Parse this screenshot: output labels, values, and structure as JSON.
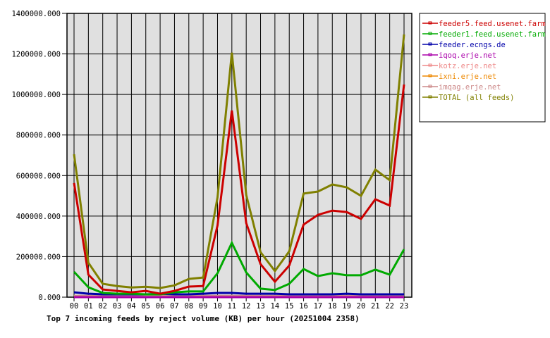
{
  "chart_data": {
    "type": "line",
    "title": "Top 7 incoming feeds by reject volume (KB) per hour (20251004 2358)",
    "xlabel": "",
    "ylabel": "",
    "ylim": [
      0,
      1400000
    ],
    "y_ticks": [
      "0.000",
      "200000.000",
      "400000.000",
      "600000.000",
      "800000.000",
      "1000000.000",
      "1200000.000",
      "1400000.000"
    ],
    "categories": [
      "00",
      "01",
      "02",
      "03",
      "04",
      "05",
      "06",
      "07",
      "08",
      "09",
      "10",
      "11",
      "12",
      "13",
      "14",
      "15",
      "16",
      "17",
      "18",
      "19",
      "20",
      "21",
      "22",
      "23"
    ],
    "grid": true,
    "legend_position": "right-top",
    "series": [
      {
        "name": "feeder5.feed.usenet.farm",
        "color": "#cc0000",
        "values": [
          563000,
          111000,
          38000,
          31000,
          24000,
          31000,
          17000,
          31000,
          52000,
          55000,
          354000,
          921000,
          365000,
          163000,
          76000,
          156000,
          358000,
          406000,
          427000,
          420000,
          386000,
          483000,
          452000,
          1049000
        ]
      },
      {
        "name": "feeder1.feed.usenet.farm",
        "color": "#00aa00",
        "values": [
          125000,
          49000,
          21000,
          17000,
          17000,
          14000,
          14000,
          24000,
          28000,
          28000,
          118000,
          268000,
          122000,
          42000,
          35000,
          66000,
          139000,
          104000,
          118000,
          108000,
          108000,
          136000,
          111000,
          236000
        ]
      },
      {
        "name": "feeder.ecngs.de",
        "color": "#0000aa",
        "values": [
          24000,
          17000,
          14000,
          14000,
          14000,
          14000,
          17000,
          14000,
          14000,
          17000,
          21000,
          21000,
          17000,
          17000,
          17000,
          14000,
          14000,
          14000,
          14000,
          17000,
          14000,
          14000,
          14000,
          14000
        ]
      },
      {
        "name": "iqoq.erje.net",
        "color": "#aa00aa",
        "values": [
          0,
          0,
          0,
          0,
          0,
          0,
          0,
          0,
          0,
          0,
          0,
          0,
          0,
          0,
          0,
          0,
          0,
          0,
          0,
          0,
          0,
          0,
          0,
          0
        ]
      },
      {
        "name": "kotz.erje.net",
        "color": "#ee8888",
        "values": [
          0,
          0,
          0,
          0,
          0,
          0,
          0,
          0,
          0,
          0,
          0,
          0,
          0,
          0,
          0,
          0,
          0,
          0,
          0,
          0,
          0,
          0,
          0,
          0
        ]
      },
      {
        "name": "ixni.erje.net",
        "color": "#ee8800",
        "values": [
          0,
          0,
          0,
          0,
          0,
          0,
          0,
          0,
          0,
          0,
          0,
          0,
          0,
          0,
          0,
          0,
          0,
          0,
          0,
          0,
          0,
          0,
          0,
          0
        ]
      },
      {
        "name": "imqag.erje.net",
        "color": "#cc8888",
        "values": [
          6000,
          6000,
          6000,
          6000,
          6000,
          6000,
          6000,
          6000,
          6000,
          6000,
          6000,
          6000,
          6000,
          6000,
          6000,
          6000,
          6000,
          6000,
          6000,
          6000,
          6000,
          6000,
          6000,
          6000
        ]
      },
      {
        "name": "TOTAL (all feeds)",
        "color": "#808000",
        "values": [
          705000,
          170000,
          66000,
          55000,
          48000,
          51000,
          45000,
          58000,
          90000,
          97000,
          493000,
          1206000,
          504000,
          222000,
          129000,
          226000,
          511000,
          521000,
          556000,
          542000,
          500000,
          629000,
          577000,
          1296000
        ]
      }
    ]
  }
}
